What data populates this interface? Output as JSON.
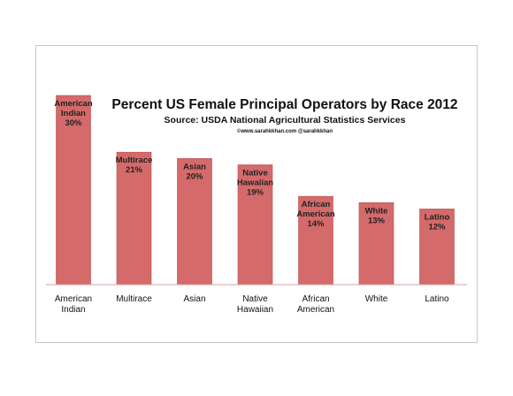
{
  "chart_data": {
    "type": "bar",
    "title": "Percent US Female Principal Operators by Race 2012",
    "subtitle": "Source: USDA National Agricultural Statistics Services",
    "credit": "©www.sarahkkhan.com @sarahkkhan",
    "categories": [
      [
        "American",
        "Indian"
      ],
      [
        "Multirace"
      ],
      [
        "Asian"
      ],
      [
        "Native",
        "Hawaiian"
      ],
      [
        "African",
        "American"
      ],
      [
        "White"
      ],
      [
        "Latino"
      ]
    ],
    "values": [
      30,
      21,
      20,
      19,
      14,
      13,
      12
    ],
    "data_labels": [
      "30%",
      "21%",
      "20%",
      "19%",
      "14%",
      "13%",
      "12%"
    ],
    "xlabel": "",
    "ylabel": "",
    "ylim": [
      0,
      30
    ],
    "grid": false,
    "legend": "none",
    "bar_color": "#d46a6a",
    "bar_edge_color": "#b84f4f"
  }
}
